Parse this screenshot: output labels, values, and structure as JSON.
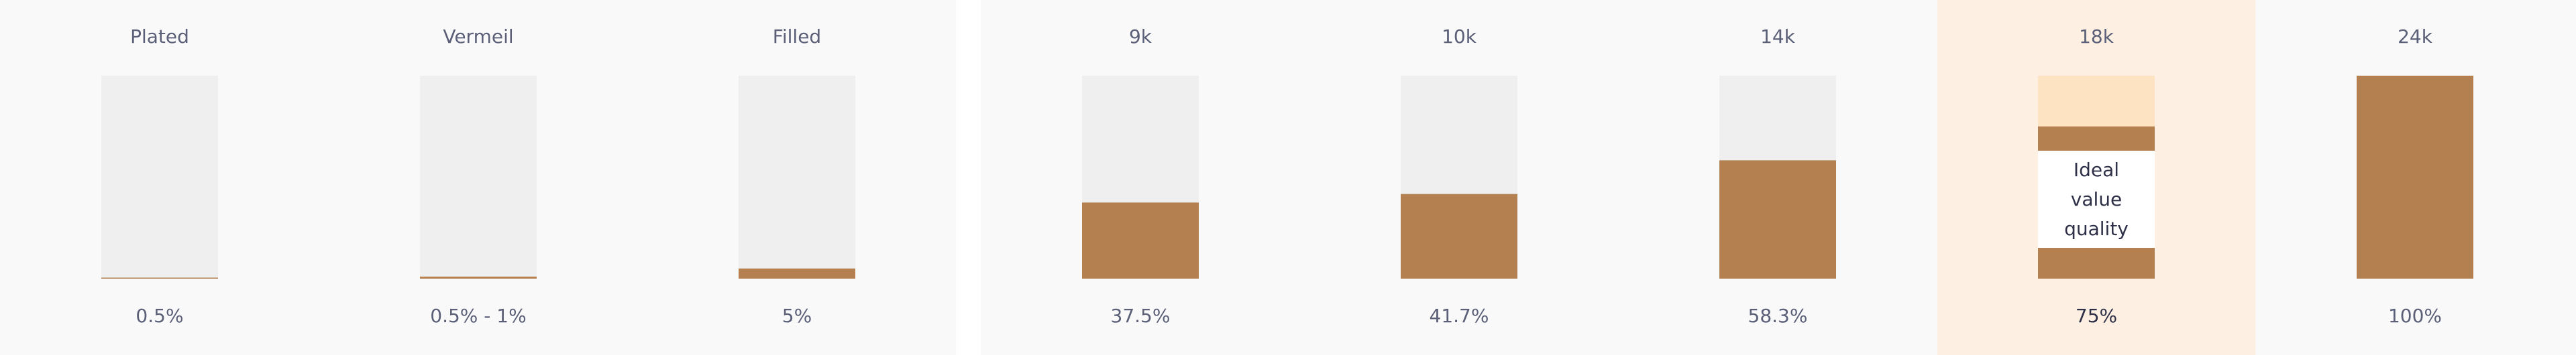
{
  "chart_data": [
    {
      "type": "bar",
      "categories": [
        "Plated",
        "Vermeil",
        "Filled"
      ],
      "values": [
        0.5,
        1,
        5
      ],
      "value_labels": [
        "0.5%",
        "0.5% - 1%",
        "5%"
      ],
      "ylim": [
        0,
        100
      ],
      "color": "#b4804f"
    },
    {
      "type": "bar",
      "categories": [
        "9k",
        "10k",
        "14k",
        "18k",
        "24k"
      ],
      "values": [
        37.5,
        41.7,
        58.3,
        75,
        100
      ],
      "value_labels": [
        "37.5%",
        "41.7%",
        "58.3%",
        "75%",
        "100%"
      ],
      "ylim": [
        0,
        100
      ],
      "color": "#b4804f",
      "annotation": {
        "category": "18k",
        "text": [
          "Ideal",
          "value",
          "quality"
        ]
      }
    }
  ]
}
